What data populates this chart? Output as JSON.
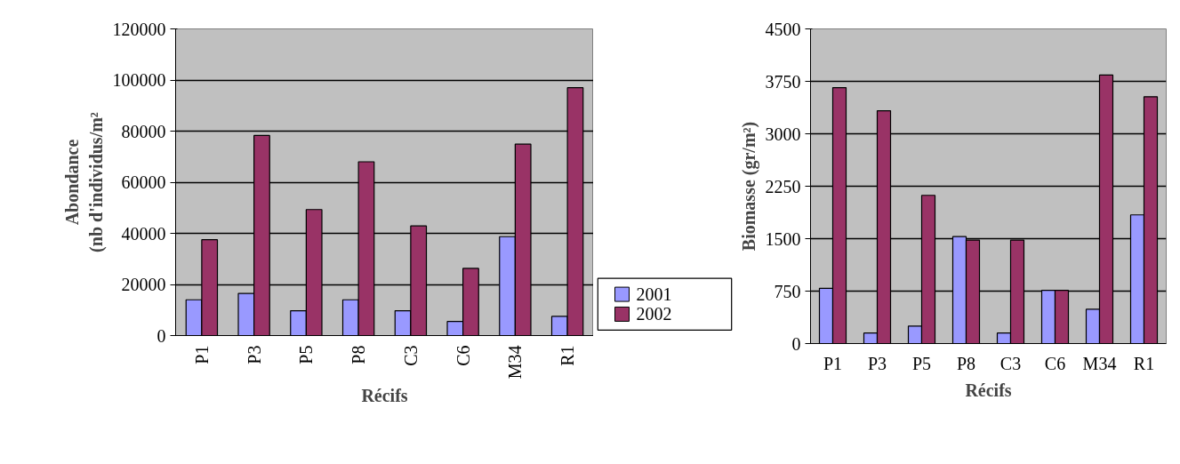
{
  "chart_data": [
    {
      "type": "bar",
      "xlabel": "Récifs",
      "ylabel": "Abondance\n(nb d'individus/m²",
      "categories": [
        "P1",
        "P3",
        "P5",
        "P8",
        "C3",
        "C6",
        "M34",
        "R1"
      ],
      "series": [
        {
          "name": "2001",
          "color": "#9999ff",
          "values": [
            14000,
            16500,
            9700,
            14000,
            9700,
            5500,
            38700,
            7500
          ]
        },
        {
          "name": "2002",
          "color": "#993366",
          "values": [
            37500,
            78300,
            49300,
            68000,
            42900,
            26300,
            74900,
            97000
          ]
        }
      ],
      "ylim": [
        0,
        120000
      ],
      "yticks": [
        0,
        20000,
        40000,
        60000,
        80000,
        100000,
        120000
      ],
      "grid": "y",
      "legend": "bottom right"
    },
    {
      "type": "bar",
      "xlabel": "Récifs",
      "ylabel": "Biomasse (gr/m²)",
      "categories": [
        "P1",
        "P3",
        "P5",
        "P8",
        "C3",
        "C6",
        "M34",
        "R1"
      ],
      "series": [
        {
          "color": "#9999ff",
          "values": [
            790,
            150,
            250,
            1530,
            150,
            760,
            490,
            1840
          ]
        },
        {
          "color": "#993366",
          "values": [
            3660,
            3330,
            2120,
            1480,
            1480,
            760,
            3840,
            3530
          ]
        }
      ],
      "ylim": [
        0,
        4500
      ],
      "yticks": [
        0,
        750,
        1500,
        2250,
        3000,
        3750,
        4500
      ],
      "grid": "y"
    }
  ]
}
